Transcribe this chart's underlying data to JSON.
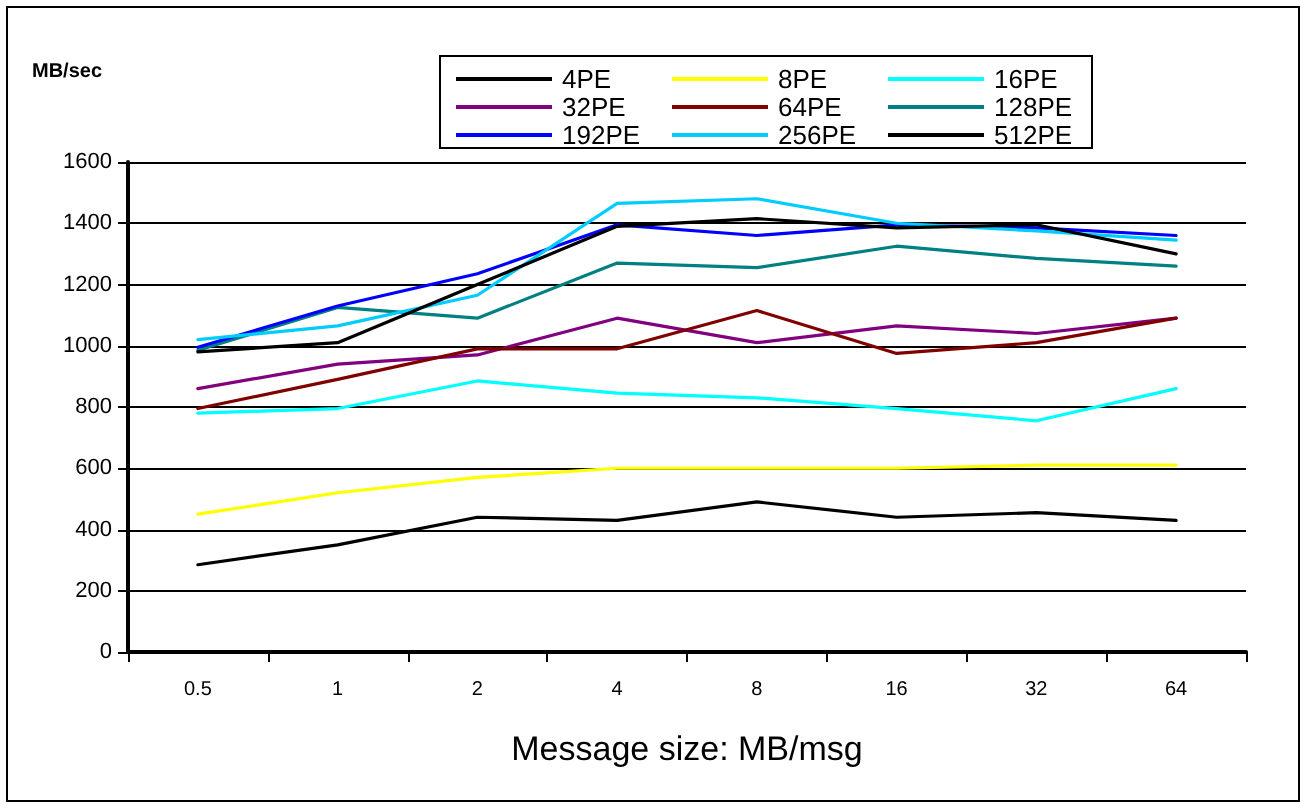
{
  "chart_data": {
    "type": "line",
    "xlabel": "Message size: MB/msg",
    "ylabel": "MB/sec",
    "categories": [
      "0.5",
      "1",
      "2",
      "4",
      "8",
      "16",
      "32",
      "64"
    ],
    "series": [
      {
        "name": "4PE",
        "color": "#000000",
        "values": [
          285,
          350,
          440,
          430,
          490,
          440,
          455,
          430
        ]
      },
      {
        "name": "8PE",
        "color": "#ffff00",
        "values": [
          450,
          520,
          570,
          600,
          600,
          600,
          610,
          610
        ]
      },
      {
        "name": "16PE",
        "color": "#00ffff",
        "values": [
          780,
          795,
          885,
          845,
          830,
          795,
          755,
          860
        ]
      },
      {
        "name": "32PE",
        "color": "#800080",
        "values": [
          860,
          940,
          970,
          1090,
          1010,
          1065,
          1040,
          1090
        ]
      },
      {
        "name": "64PE",
        "color": "#800000",
        "values": [
          795,
          890,
          990,
          990,
          1115,
          975,
          1010,
          1090
        ]
      },
      {
        "name": "128PE",
        "color": "#008080",
        "values": [
          985,
          1125,
          1090,
          1270,
          1255,
          1325,
          1285,
          1260
        ]
      },
      {
        "name": "192PE",
        "color": "#0000ff",
        "values": [
          995,
          1130,
          1235,
          1395,
          1360,
          1395,
          1385,
          1360
        ]
      },
      {
        "name": "256PE",
        "color": "#00ccff",
        "values": [
          1020,
          1065,
          1165,
          1465,
          1480,
          1400,
          1375,
          1345
        ]
      },
      {
        "name": "512PE",
        "color": "#000000",
        "values": [
          980,
          1010,
          1200,
          1390,
          1415,
          1385,
          1395,
          1300
        ]
      }
    ],
    "ylim": [
      0,
      1600
    ],
    "yticks": [
      0,
      200,
      400,
      600,
      800,
      1000,
      1200,
      1400,
      1600
    ],
    "grid": "y",
    "legend": "top",
    "marker": "none",
    "line_style": "solid"
  }
}
